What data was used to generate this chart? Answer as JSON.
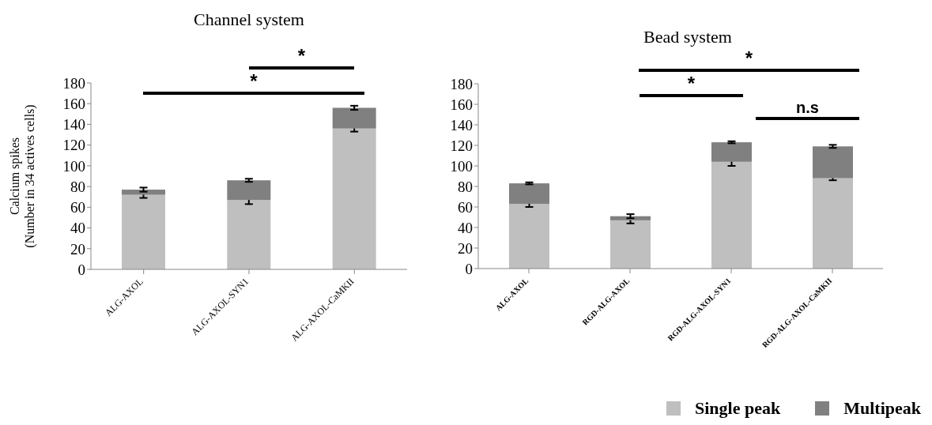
{
  "chart_data": [
    {
      "type": "bar",
      "title": "Channel system",
      "ylabel": "Calcium spikes\n(Number in 34 actives cells)",
      "categories": [
        "ALG-AXOL",
        "ALG-AXOL-SYN1",
        "ALG-AXOL-CaMKII"
      ],
      "stacked": true,
      "ylim": [
        0,
        180
      ],
      "yticks": [
        0,
        20,
        40,
        60,
        80,
        100,
        120,
        140,
        160,
        180
      ],
      "grid": false,
      "legend": false,
      "series": [
        {
          "color": "#bfbfbf",
          "values": [
            72,
            67,
            136
          ],
          "errors": [
            3,
            4,
            3
          ]
        },
        {
          "color": "#808080",
          "values": [
            5,
            19,
            20
          ],
          "errors": [
            2,
            1.5,
            2
          ]
        }
      ],
      "annotations": [
        "*",
        "*"
      ]
    },
    {
      "type": "bar",
      "title": "Bead system",
      "categories": [
        "ALG-AXOL",
        "RGD-ALG-AXOL",
        "RGD-ALG-AXOL-SYN1",
        "RGD-ALG-AXOL-CaMKII"
      ],
      "stacked": true,
      "ylim": [
        0,
        180
      ],
      "yticks": [
        0,
        20,
        40,
        60,
        80,
        100,
        120,
        140,
        160,
        180
      ],
      "grid": false,
      "legend": "bottom right",
      "series": [
        {
          "name": "Single peak",
          "color": "#bfbfbf",
          "values": [
            63,
            47,
            104,
            88
          ],
          "errors": [
            3,
            3,
            4,
            2
          ]
        },
        {
          "name": "Multipeak",
          "color": "#808080",
          "values": [
            20,
            4,
            19,
            31
          ],
          "errors": [
            1,
            2,
            1,
            1.5
          ]
        }
      ],
      "annotations": [
        "*",
        "*",
        "n.s"
      ]
    }
  ]
}
